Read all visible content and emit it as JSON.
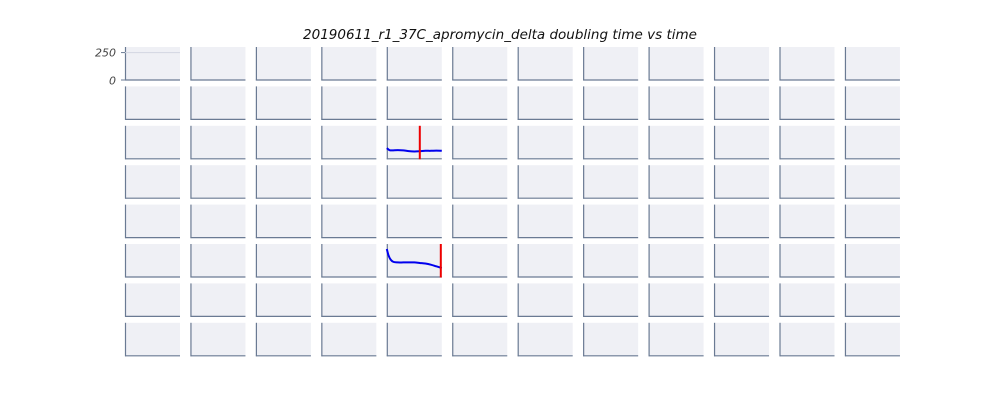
{
  "chart_data": {
    "type": "line",
    "title": "20190611_r1_37C_apromycin_delta doubling time vs time",
    "grid": {
      "rows": 8,
      "cols": 12
    },
    "ytick_labels": [
      "250",
      "0"
    ],
    "ylim": [
      0,
      300
    ],
    "xlim": [
      0,
      10
    ],
    "colors": {
      "panel_bg": "#eff0f5",
      "axis": "#6a7a93",
      "series": "#0000ee",
      "marker": "#ee0000",
      "gridline": "#d2d6e2"
    },
    "panels": [
      {
        "row": 2,
        "col": 4,
        "series": {
          "x": [
            0,
            0.5,
            1,
            2,
            3,
            4,
            5,
            6,
            7,
            8,
            9,
            10
          ],
          "y": [
            100,
            82,
            80,
            82,
            80,
            73,
            70,
            72,
            76,
            76,
            78,
            76
          ]
        },
        "vline_x": 6
      },
      {
        "row": 5,
        "col": 4,
        "series": {
          "x": [
            0,
            0.3,
            0.7,
            1.2,
            2,
            3,
            4,
            5,
            6,
            7,
            8,
            9,
            10
          ],
          "y": [
            255,
            200,
            160,
            140,
            135,
            135,
            135,
            135,
            130,
            125,
            115,
            100,
            85
          ]
        },
        "vline_x": 10
      }
    ]
  }
}
